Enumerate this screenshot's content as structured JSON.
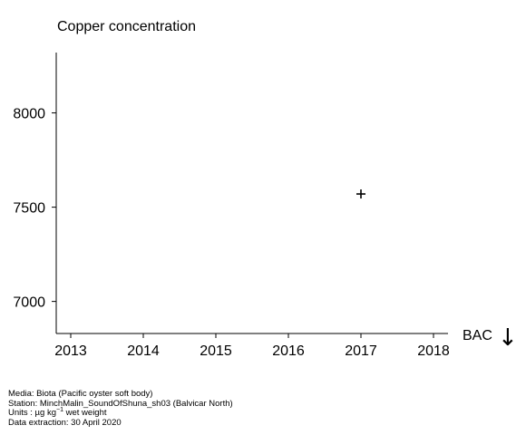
{
  "chart_data": {
    "type": "scatter",
    "title": "Copper concentration",
    "xlim": [
      2012.8,
      2018.2
    ],
    "ylim": [
      6830,
      8320
    ],
    "x_ticks": [
      2013,
      2014,
      2015,
      2016,
      2017,
      2018
    ],
    "y_ticks": [
      7000,
      7500,
      8000
    ],
    "points": [
      {
        "x": 2017,
        "y": 7570
      }
    ],
    "marker": "plus",
    "assessment_label": "BAC",
    "assessment_symbol": "↓",
    "color": "#000000"
  },
  "footer": {
    "media": "Media: Biota (Pacific oyster soft body)",
    "station": "Station: MinchMalin_SoundOfShuna_sh03 (Balvicar North)",
    "units_prefix": "Units : µg kg",
    "units_exponent": "−1",
    "units_suffix": " wet weight",
    "extraction": "Data extraction: 30 April 2020"
  }
}
